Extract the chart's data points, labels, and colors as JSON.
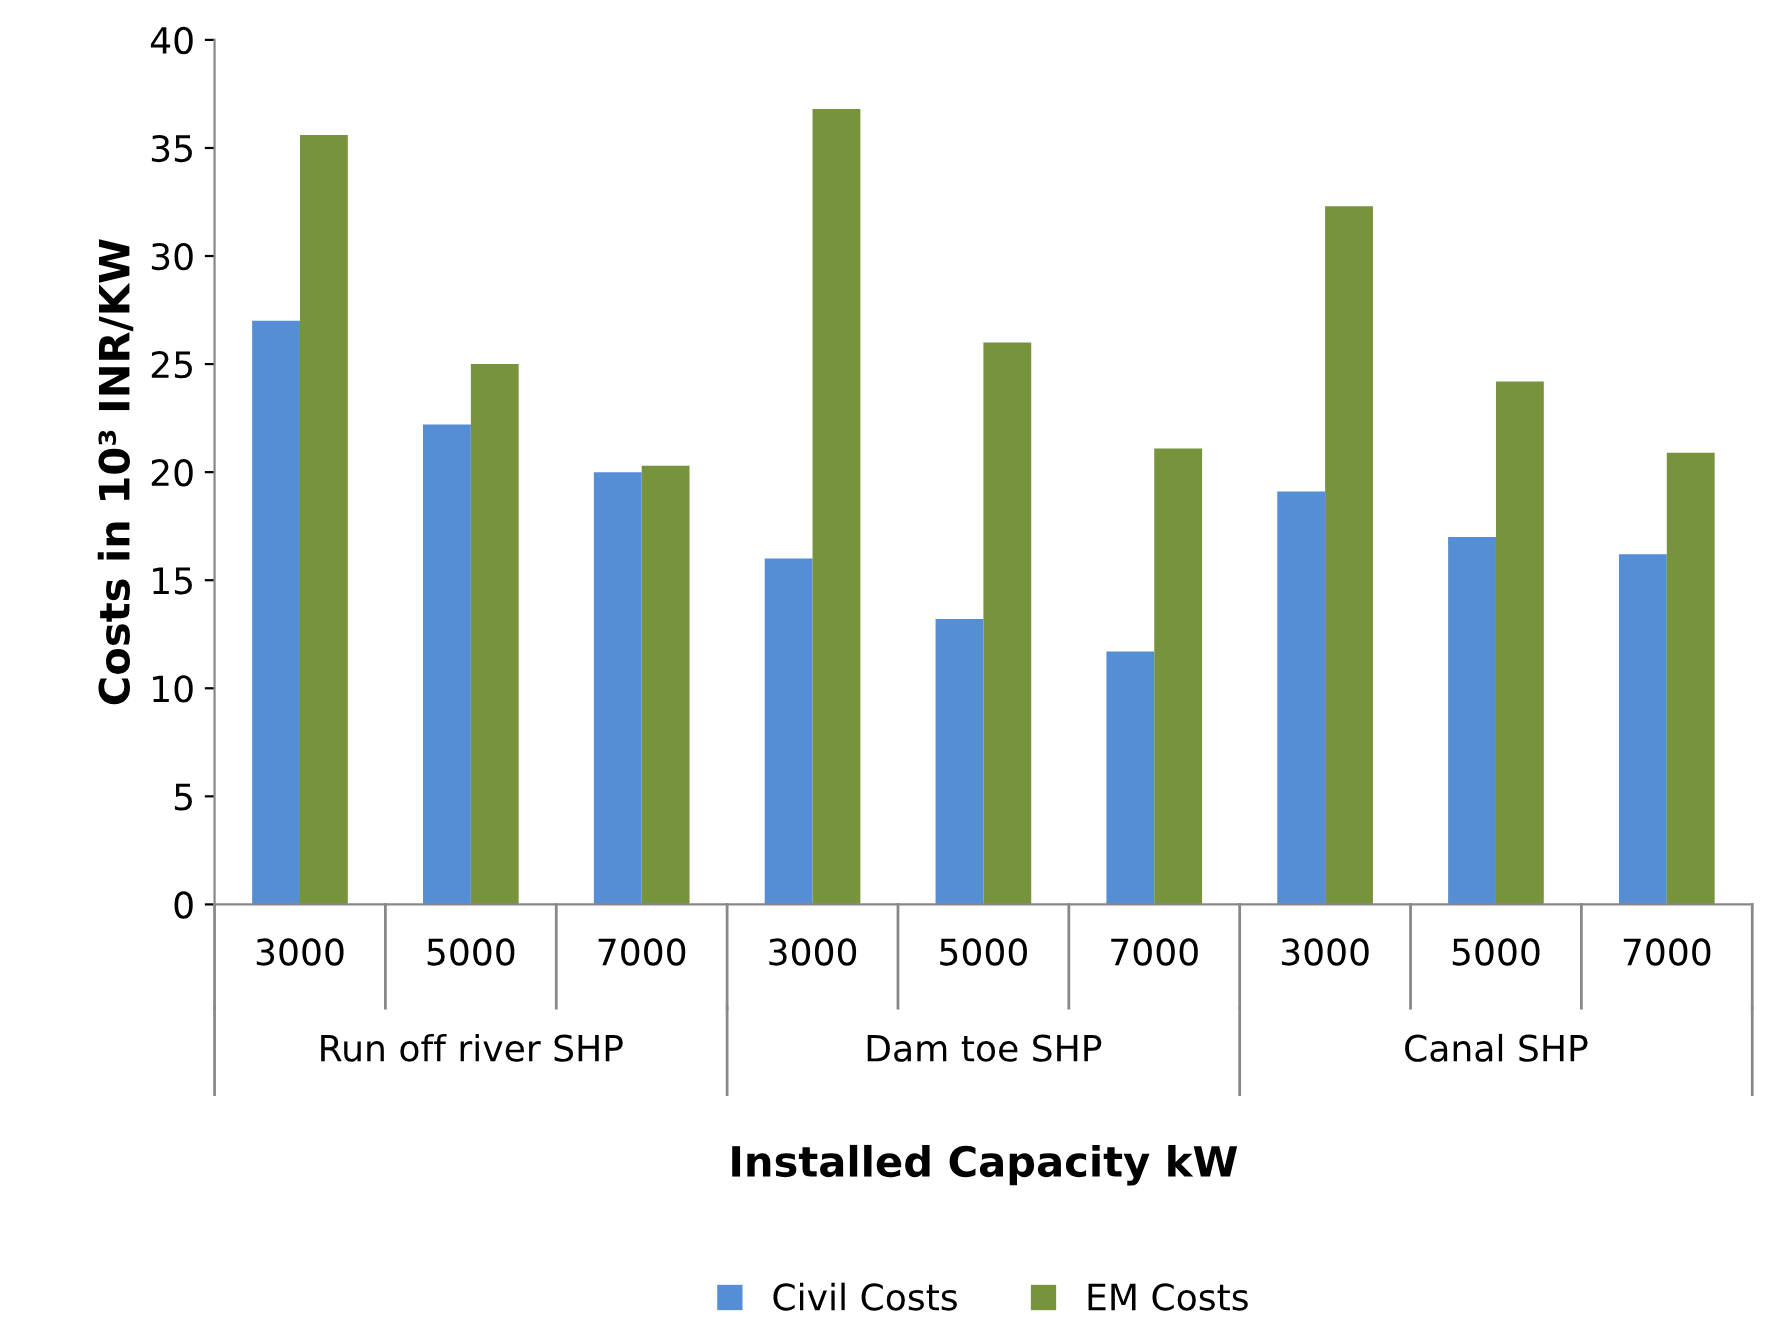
{
  "chart_data": {
    "type": "bar",
    "xlabel": "Installed Capacity kW",
    "ylabel": "Costs in 10³ INR/KW",
    "categories": [
      "3000",
      "5000",
      "7000",
      "3000",
      "5000",
      "7000",
      "3000",
      "5000",
      "7000"
    ],
    "series": [
      {
        "name": "Civil Costs",
        "color": "#558ed5",
        "values": [
          27.0,
          22.2,
          20.0,
          16.0,
          13.2,
          11.7,
          19.1,
          17.0,
          16.2
        ]
      },
      {
        "name": "EM Costs",
        "color": "#77933c",
        "values": [
          35.6,
          25.0,
          20.3,
          36.8,
          26.0,
          21.1,
          32.3,
          24.2,
          20.9
        ]
      }
    ],
    "annotations": [
      "Run off river SHP",
      "Dam toe SHP",
      "Canal SHP"
    ],
    "ylim": [
      0,
      40
    ],
    "yticks": [
      0,
      5,
      10,
      15,
      20,
      25,
      30,
      35,
      40
    ],
    "grid": false,
    "legend": "bottom"
  }
}
